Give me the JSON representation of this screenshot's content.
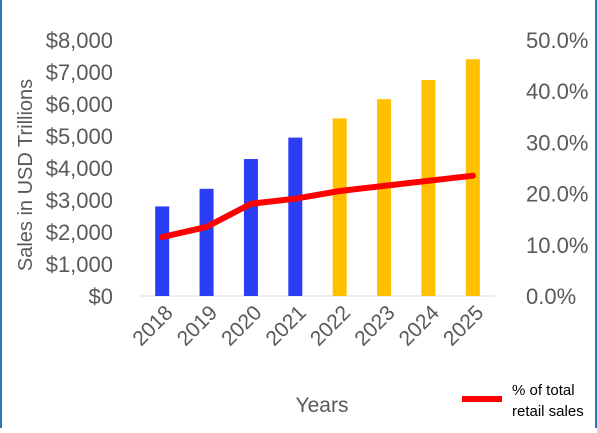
{
  "chart_data": {
    "type": "bar",
    "title": "",
    "xlabel": "Years",
    "ylabel": "Sales in USD Trillions",
    "categories": [
      "2018",
      "2019",
      "2020",
      "2021",
      "2022",
      "2023",
      "2024",
      "2025"
    ],
    "ylim": [
      0,
      8000
    ],
    "y_ticks": [
      "$0",
      "$1,000",
      "$2,000",
      "$3,000",
      "$4,000",
      "$5,000",
      "$6,000",
      "$7,000",
      "$8,000"
    ],
    "y2lim": [
      0,
      50
    ],
    "y2_ticks": [
      "0.0%",
      "10.0%",
      "20.0%",
      "30.0%",
      "40.0%",
      "50.0%"
    ],
    "grid": false,
    "legend_position": "bottom-right",
    "series": [
      {
        "type": "bar",
        "axis": "left",
        "values": [
          2800,
          3350,
          4280,
          4950,
          5550,
          6150,
          6750,
          7400
        ],
        "colors": [
          "#2b3ef5",
          "#2b3ef5",
          "#2b3ef5",
          "#2b3ef5",
          "#ffc000",
          "#ffc000",
          "#ffc000",
          "#ffc000"
        ]
      },
      {
        "type": "line",
        "axis": "right",
        "name": "% of total retail sales",
        "values": [
          11.5,
          13.5,
          18.0,
          19.0,
          20.5,
          21.5,
          22.5,
          23.5
        ],
        "color": "#ff0000"
      }
    ],
    "legend": {
      "line1": "% of total",
      "line2": "retail sales"
    },
    "frame_color": "#2e75b6"
  }
}
